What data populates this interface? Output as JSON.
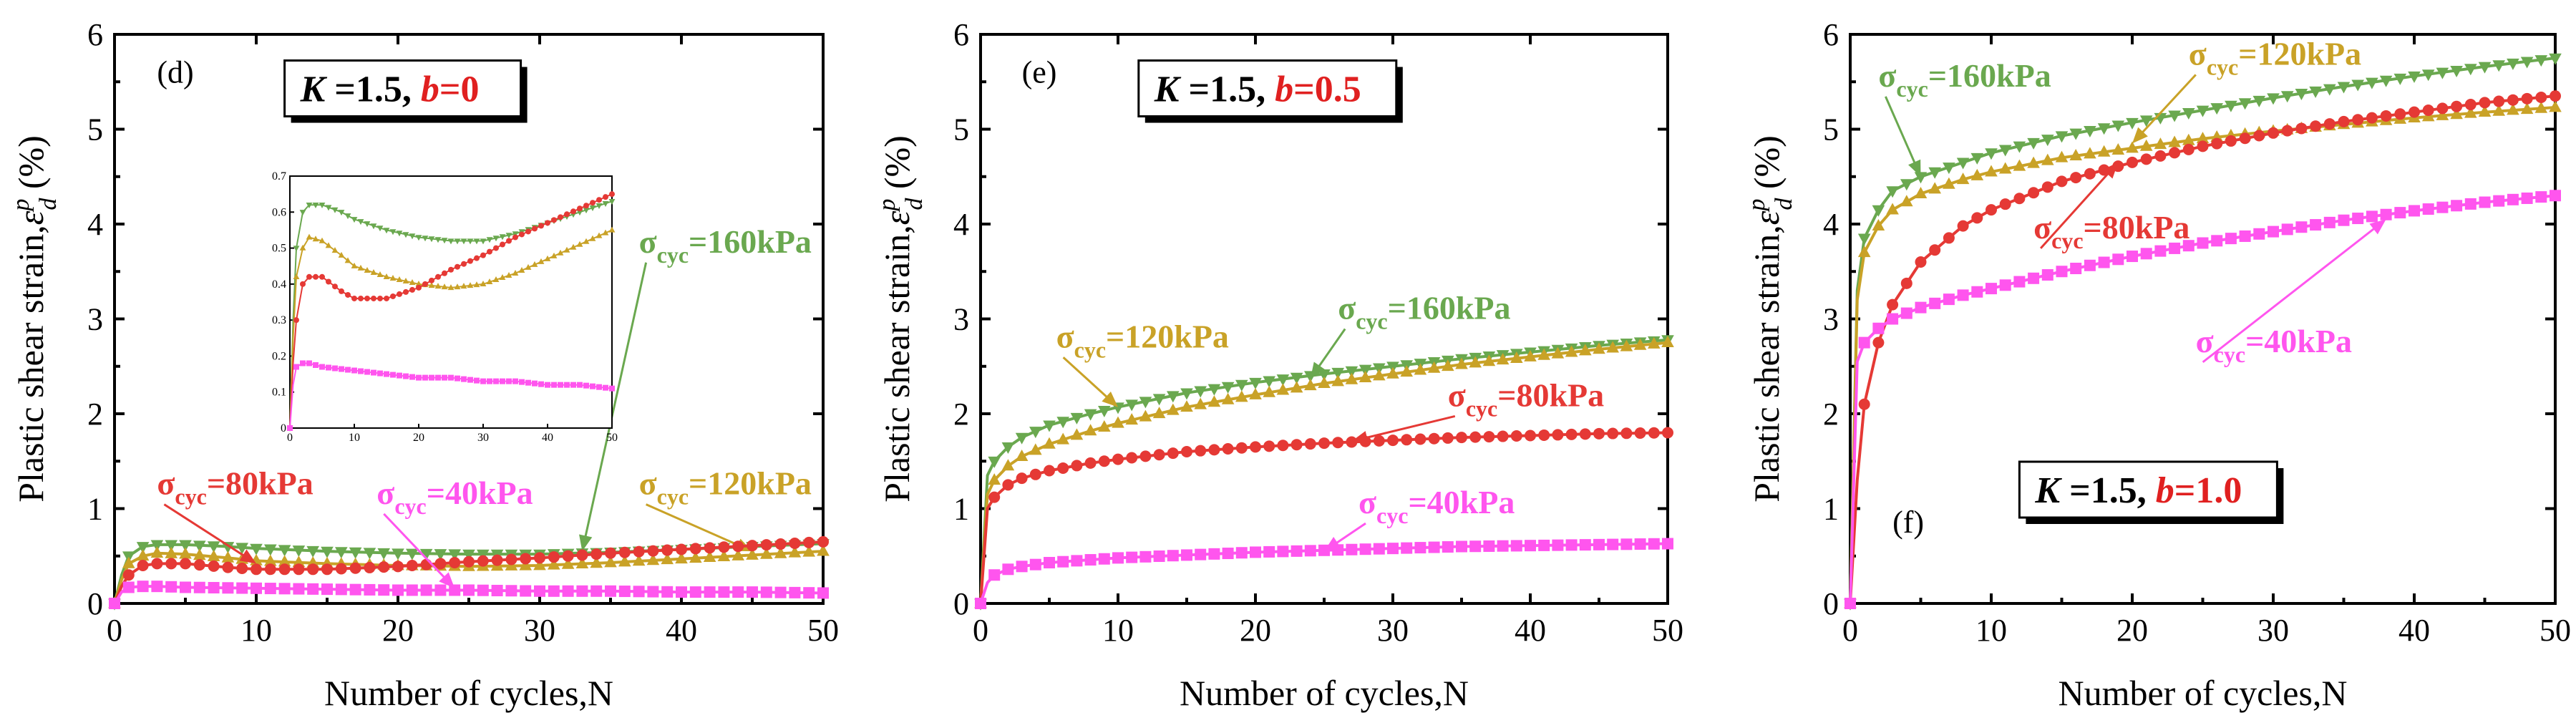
{
  "chart_data": [
    {
      "type": "line",
      "panel": "(d)",
      "condition": {
        "k": "K",
        "k_val": " =1.5, ",
        "b": "b",
        "b_val": "=0"
      },
      "xlabel": "Number of cycles,N",
      "ylabel": "Plastic shear strain,",
      "ylabel_sym": "ε",
      "ylabel_sup": "p",
      "ylabel_sub": "d",
      "ylabel_unit": " (%)",
      "xlim": [
        0,
        50
      ],
      "ylim": [
        0,
        6
      ],
      "xticks": [
        "0",
        "10",
        "20",
        "30",
        "40",
        "50"
      ],
      "yticks": [
        "0",
        "1",
        "2",
        "3",
        "4",
        "5",
        "6"
      ],
      "series": [
        {
          "name": "160kPa",
          "prefix": "σ",
          "sub": "cyc",
          "label": "=160kPa",
          "color": "#6aa84f",
          "marker": "triangle-down",
          "x": [
            0,
            0.5,
            1,
            2,
            3,
            5,
            8,
            10,
            15,
            20,
            25,
            30,
            35,
            40,
            45,
            50
          ],
          "y": [
            0,
            0.3,
            0.5,
            0.6,
            0.62,
            0.62,
            0.6,
            0.58,
            0.55,
            0.53,
            0.52,
            0.52,
            0.54,
            0.57,
            0.6,
            0.63
          ]
        },
        {
          "name": "120kPa",
          "prefix": "σ",
          "sub": "cyc",
          "label": "=120kPa",
          "color": "#c9a227",
          "marker": "triangle-up",
          "x": [
            0,
            0.5,
            1,
            2,
            3,
            5,
            8,
            10,
            15,
            20,
            25,
            30,
            35,
            40,
            45,
            50
          ],
          "y": [
            0,
            0.25,
            0.42,
            0.5,
            0.53,
            0.52,
            0.48,
            0.45,
            0.42,
            0.4,
            0.39,
            0.4,
            0.43,
            0.47,
            0.51,
            0.55
          ]
        },
        {
          "name": "80kPa",
          "prefix": "σ",
          "sub": "cyc",
          "label": "=80kPa",
          "color": "#e53935",
          "marker": "circle",
          "x": [
            0,
            0.5,
            1,
            2,
            3,
            5,
            8,
            10,
            15,
            20,
            25,
            30,
            35,
            40,
            45,
            50
          ],
          "y": [
            0,
            0.18,
            0.3,
            0.4,
            0.42,
            0.42,
            0.38,
            0.36,
            0.36,
            0.39,
            0.44,
            0.48,
            0.53,
            0.57,
            0.61,
            0.65
          ]
        },
        {
          "name": "40kPa",
          "prefix": "σ",
          "sub": "cyc",
          "label": "=40kPa",
          "color": "#ff55ee",
          "marker": "square",
          "x": [
            0,
            0.5,
            1,
            2,
            3,
            5,
            10,
            15,
            20,
            25,
            30,
            35,
            40,
            45,
            50
          ],
          "y": [
            0,
            0.12,
            0.17,
            0.18,
            0.18,
            0.17,
            0.16,
            0.15,
            0.14,
            0.14,
            0.13,
            0.13,
            0.12,
            0.12,
            0.11
          ]
        }
      ],
      "inset": {
        "xlim": [
          0,
          50
        ],
        "ylim": [
          0,
          0.7
        ],
        "xticks": [
          "0",
          "10",
          "20",
          "30",
          "40",
          "50"
        ],
        "yticks": [
          "0",
          "0.1",
          "0.2",
          "0.3",
          "0.4",
          "0.5",
          "0.6",
          "0.7"
        ]
      }
    },
    {
      "type": "line",
      "panel": "(e)",
      "condition": {
        "k": "K",
        "k_val": " =1.5, ",
        "b": "b",
        "b_val": "=0.5"
      },
      "xlabel": "Number of cycles,N",
      "ylabel": "Plastic shear strain,",
      "ylabel_sym": "ε",
      "ylabel_sup": "p",
      "ylabel_sub": "d",
      "ylabel_unit": " (%)",
      "xlim": [
        0,
        50
      ],
      "ylim": [
        0,
        6
      ],
      "xticks": [
        "0",
        "10",
        "20",
        "30",
        "40",
        "50"
      ],
      "yticks": [
        "0",
        "1",
        "2",
        "3",
        "4",
        "5",
        "6"
      ],
      "series": [
        {
          "name": "160kPa",
          "prefix": "σ",
          "sub": "cyc",
          "label": "=160kPa",
          "color": "#6aa84f",
          "marker": "triangle-down",
          "x": [
            0,
            0.5,
            1,
            2,
            3,
            5,
            8,
            10,
            15,
            20,
            25,
            30,
            35,
            40,
            45,
            50
          ],
          "y": [
            0,
            1.35,
            1.5,
            1.65,
            1.75,
            1.88,
            2.0,
            2.07,
            2.22,
            2.33,
            2.42,
            2.5,
            2.58,
            2.65,
            2.72,
            2.78
          ]
        },
        {
          "name": "120kPa",
          "prefix": "σ",
          "sub": "cyc",
          "label": "=120kPa",
          "color": "#c9a227",
          "marker": "triangle-up",
          "x": [
            0,
            0.5,
            1,
            2,
            3,
            5,
            8,
            10,
            15,
            20,
            25,
            30,
            35,
            40,
            45,
            50
          ],
          "y": [
            0,
            1.15,
            1.3,
            1.45,
            1.55,
            1.68,
            1.82,
            1.9,
            2.07,
            2.2,
            2.32,
            2.42,
            2.52,
            2.6,
            2.68,
            2.75
          ]
        },
        {
          "name": "80kPa",
          "prefix": "σ",
          "sub": "cyc",
          "label": "=80kPa",
          "color": "#e53935",
          "marker": "circle",
          "x": [
            0,
            0.5,
            1,
            2,
            3,
            5,
            8,
            10,
            15,
            20,
            25,
            30,
            35,
            40,
            45,
            50
          ],
          "y": [
            0,
            1.0,
            1.12,
            1.25,
            1.32,
            1.4,
            1.48,
            1.52,
            1.6,
            1.65,
            1.69,
            1.72,
            1.75,
            1.77,
            1.79,
            1.8
          ]
        },
        {
          "name": "40kPa",
          "prefix": "σ",
          "sub": "cyc",
          "label": "=40kPa",
          "color": "#ff55ee",
          "marker": "square",
          "x": [
            0,
            0.5,
            1,
            2,
            3,
            5,
            8,
            10,
            15,
            20,
            25,
            30,
            35,
            40,
            45,
            50
          ],
          "y": [
            0,
            0.22,
            0.3,
            0.36,
            0.39,
            0.43,
            0.46,
            0.48,
            0.51,
            0.54,
            0.56,
            0.58,
            0.6,
            0.61,
            0.62,
            0.63
          ]
        }
      ]
    },
    {
      "type": "line",
      "panel": "(f)",
      "condition": {
        "k": "K",
        "k_val": " =1.5, ",
        "b": "b",
        "b_val": "=1.0"
      },
      "xlabel": "Number of cycles,N",
      "ylabel": "Plastic shear strain,",
      "ylabel_sym": "ε",
      "ylabel_sup": "p",
      "ylabel_sub": "d",
      "ylabel_unit": " (%)",
      "xlim": [
        0,
        50
      ],
      "ylim": [
        0,
        6
      ],
      "xticks": [
        "0",
        "10",
        "20",
        "30",
        "40",
        "50"
      ],
      "yticks": [
        "0",
        "1",
        "2",
        "3",
        "4",
        "5",
        "6"
      ],
      "series": [
        {
          "name": "160kPa",
          "prefix": "σ",
          "sub": "cyc",
          "label": "=160kPa",
          "color": "#6aa84f",
          "marker": "triangle-down",
          "x": [
            0,
            0.5,
            1,
            2,
            3,
            5,
            8,
            10,
            15,
            20,
            25,
            30,
            35,
            40,
            45,
            50
          ],
          "y": [
            0,
            3.3,
            3.85,
            4.15,
            4.35,
            4.5,
            4.65,
            4.75,
            4.93,
            5.07,
            5.2,
            5.33,
            5.45,
            5.56,
            5.66,
            5.75
          ]
        },
        {
          "name": "120kPa",
          "prefix": "σ",
          "sub": "cyc",
          "label": "=120kPa",
          "color": "#c9a227",
          "marker": "triangle-up",
          "x": [
            0,
            0.5,
            1,
            2,
            3,
            5,
            8,
            10,
            15,
            20,
            25,
            30,
            35,
            40,
            45,
            50
          ],
          "y": [
            0,
            3.2,
            3.7,
            3.98,
            4.15,
            4.32,
            4.47,
            4.55,
            4.7,
            4.8,
            4.9,
            4.98,
            5.05,
            5.12,
            5.18,
            5.23
          ]
        },
        {
          "name": "80kPa",
          "prefix": "σ",
          "sub": "cyc",
          "label": "=80kPa",
          "color": "#e53935",
          "marker": "circle",
          "x": [
            0,
            0.5,
            1,
            2,
            3,
            5,
            8,
            10,
            15,
            20,
            25,
            30,
            35,
            40,
            45,
            50
          ],
          "y": [
            0,
            1.3,
            2.1,
            2.75,
            3.15,
            3.6,
            3.98,
            4.15,
            4.45,
            4.65,
            4.82,
            4.96,
            5.08,
            5.18,
            5.28,
            5.35
          ]
        },
        {
          "name": "40kPa",
          "prefix": "σ",
          "sub": "cyc",
          "label": "=40kPa",
          "color": "#ff55ee",
          "marker": "square",
          "x": [
            0,
            0.5,
            1,
            2,
            3,
            5,
            8,
            10,
            15,
            20,
            25,
            30,
            35,
            40,
            45,
            50
          ],
          "y": [
            0,
            2.55,
            2.75,
            2.9,
            3.0,
            3.12,
            3.25,
            3.32,
            3.5,
            3.66,
            3.8,
            3.92,
            4.04,
            4.14,
            4.23,
            4.3
          ]
        }
      ]
    }
  ]
}
